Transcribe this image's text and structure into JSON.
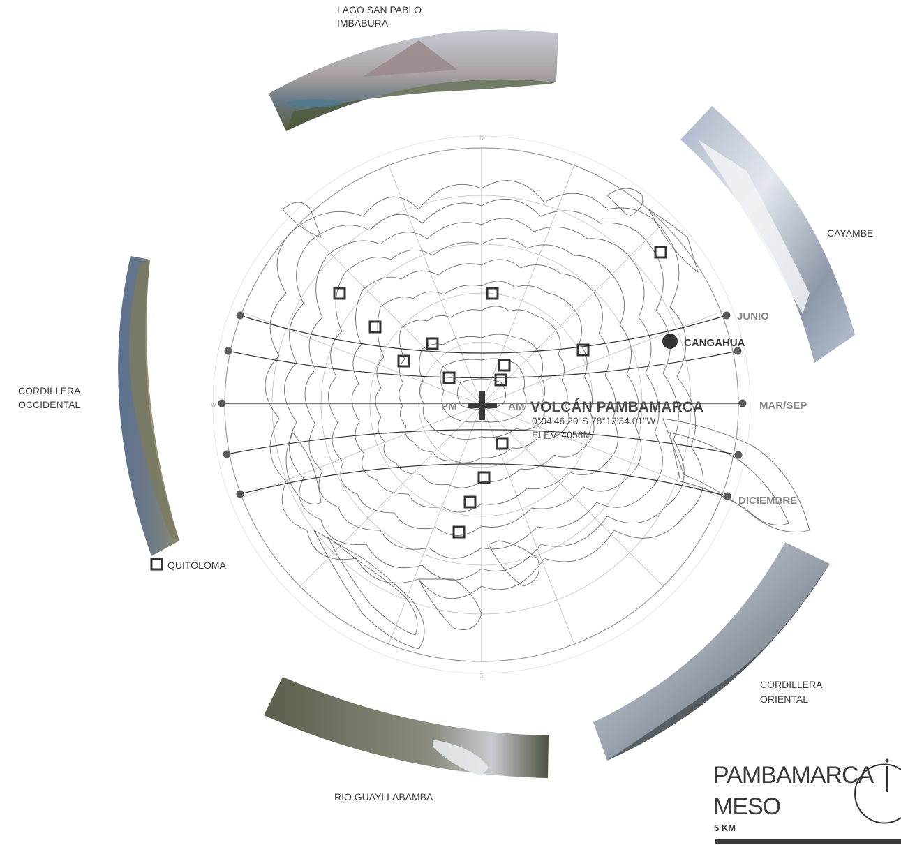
{
  "title": "VOLCÁN PAMBAMARCA",
  "coords": "0°04'46.29\"S 78°12'34.01\"W",
  "elevation": "ELEV. 4056M",
  "am_label": "AM",
  "pm_label": "PM",
  "compass": {
    "north": "N",
    "south": "S",
    "west": "W"
  },
  "sun_paths": {
    "junio": "JUNIO",
    "marsep": "MAR/SEP",
    "diciembre": "DICIEMBRE"
  },
  "cangahua": "CANGAHUA",
  "quitoloma": "QUITOLOMA",
  "views": {
    "lago": [
      "LAGO SAN PABLO",
      "IMBABURA"
    ],
    "cayambe": "CAYAMBE",
    "occidental": [
      "CORDILLERA",
      "OCCIDENTAL"
    ],
    "oriental": [
      "CORDILLERA",
      "ORIENTAL"
    ],
    "guayllabamba": "RIO GUAYLLABAMBA"
  },
  "legend": {
    "line1": "PAMBAMARCA",
    "line2": "MESO",
    "scale": "5 KM"
  },
  "colors": {
    "marker": "#3a3a3a",
    "contour": "#555555",
    "sky": "#7a8aa6",
    "rock": "#8a7a60"
  }
}
